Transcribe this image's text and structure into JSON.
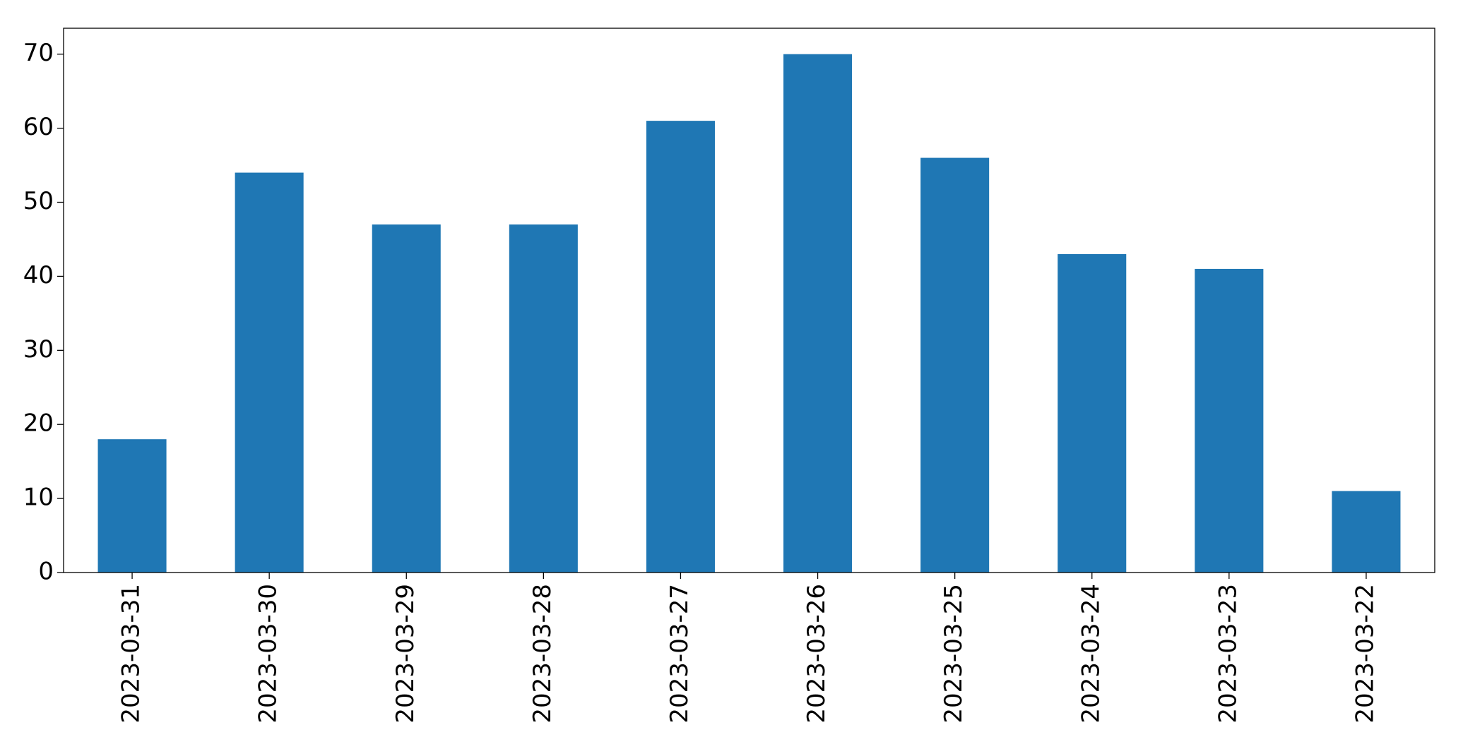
{
  "chart_data": {
    "type": "bar",
    "categories": [
      "2023-03-31",
      "2023-03-30",
      "2023-03-29",
      "2023-03-28",
      "2023-03-27",
      "2023-03-26",
      "2023-03-25",
      "2023-03-24",
      "2023-03-23",
      "2023-03-22"
    ],
    "values": [
      18,
      54,
      47,
      47,
      61,
      70,
      56,
      43,
      41,
      11
    ],
    "color": "#1f77b4",
    "ylim": [
      0,
      73.5
    ],
    "yticks": [
      0,
      10,
      20,
      30,
      40,
      50,
      60,
      70
    ],
    "grid": false
  }
}
